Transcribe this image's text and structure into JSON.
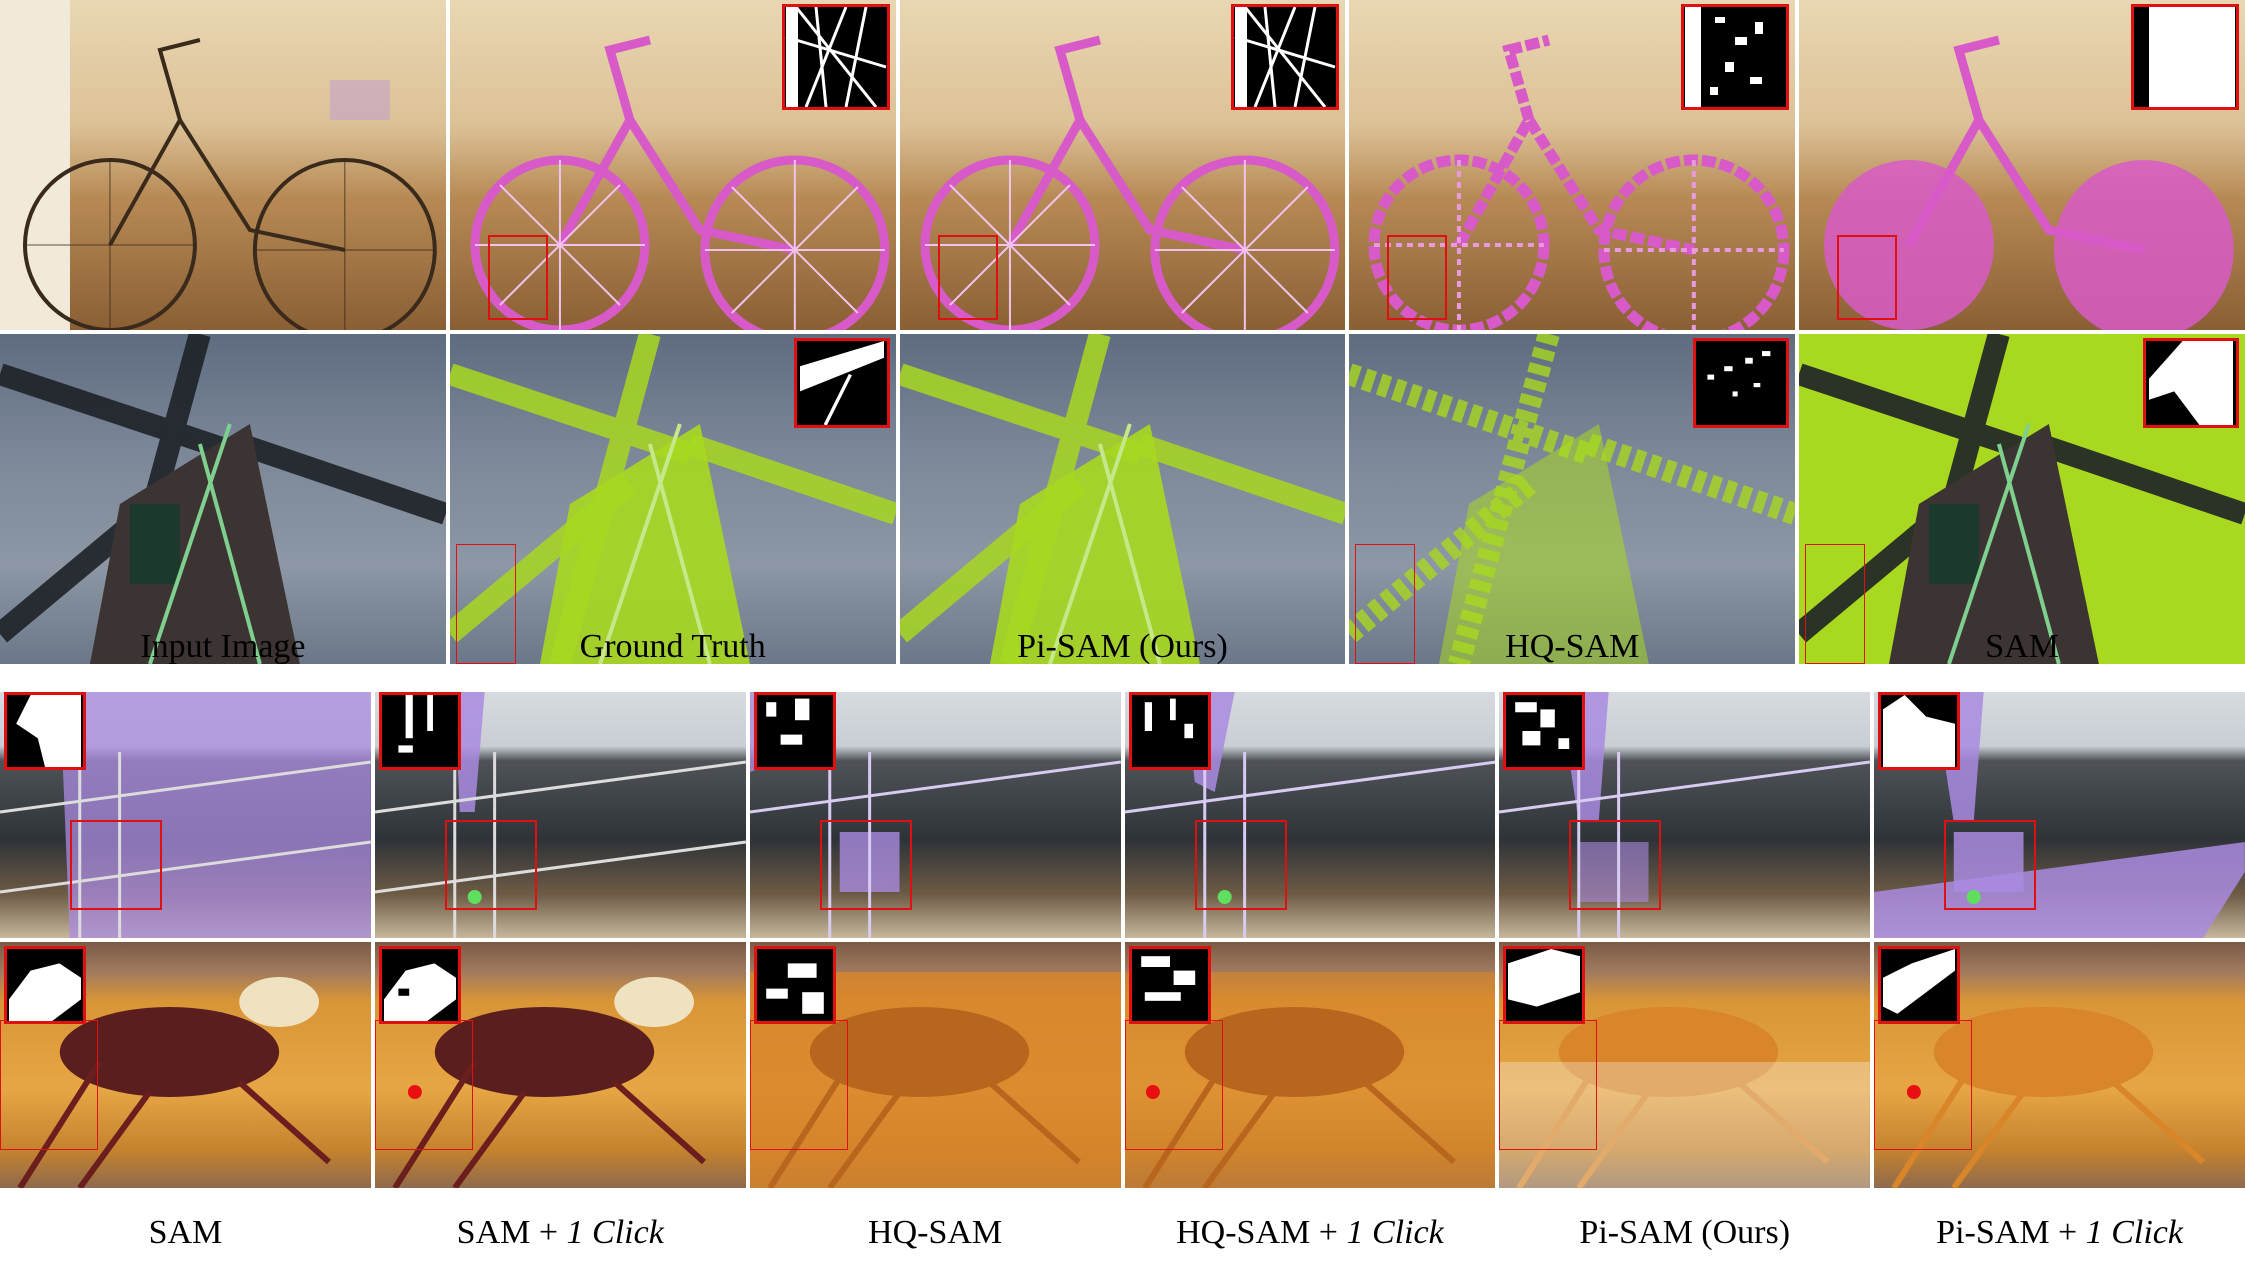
{
  "top_captions": [
    "Input Image",
    "Ground Truth",
    "Pi-SAM (Ours)",
    "HQ-SAM",
    "SAM"
  ],
  "bottom_captions": [
    {
      "text": "SAM",
      "italic": ""
    },
    {
      "text": "SAM + ",
      "italic": "1 Click"
    },
    {
      "text": "HQ-SAM",
      "italic": ""
    },
    {
      "text": "HQ-SAM + ",
      "italic": "1 Click"
    },
    {
      "text": "Pi-SAM (Ours)",
      "italic": ""
    },
    {
      "text": "Pi-SAM + ",
      "italic": "1 Click"
    }
  ],
  "mask_colors": {
    "bicycle": "#d85ac8",
    "windmill": "#a8d820",
    "boat": "#a98be0",
    "lobster": "#d9852a",
    "zoom_box": "#e01010",
    "positive_click": "#5ee05e",
    "negative_click": "#e81010"
  }
}
